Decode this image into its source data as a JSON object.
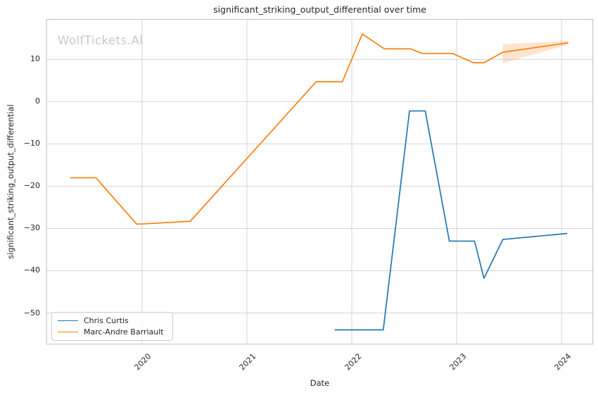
{
  "chart_data": {
    "type": "line",
    "title": "significant_striking_output_differential over time",
    "xlabel": "Date",
    "ylabel": "significant_striking_output_differential",
    "watermark": "WolfTickets.AI",
    "grid": true,
    "legend_position": "lower left",
    "xlim": [
      2019.089,
      2024.298
    ],
    "ylim": [
      -57.38,
      19.47
    ],
    "xticks": {
      "values": [
        2020,
        2021,
        2022,
        2023,
        2024
      ],
      "labels": [
        "2020",
        "2021",
        "2022",
        "2023",
        "2024"
      ]
    },
    "yticks": {
      "values": [
        10,
        0,
        -10,
        -20,
        -30,
        -40,
        -50
      ],
      "labels": [
        "10",
        "0",
        "−10",
        "−20",
        "−30",
        "−40",
        "−50"
      ]
    },
    "colors": {
      "background": "#ffffff",
      "grid": "#d5d5d5",
      "spine": "#c8c8c8",
      "text": "#262626",
      "watermark": "#c9c9c9"
    },
    "series": [
      {
        "name": "Chris Curtis",
        "color": "#1f77b4",
        "points": [
          [
            2021.84,
            -54
          ],
          [
            2022.3,
            -54
          ],
          [
            2022.55,
            -2.2
          ],
          [
            2022.7,
            -2.2
          ],
          [
            2022.93,
            -33
          ],
          [
            2023.17,
            -33
          ],
          [
            2023.26,
            -41.8
          ],
          [
            2023.44,
            -32.6
          ],
          [
            2024.05,
            -31.2
          ]
        ]
      },
      {
        "name": "Marc-Andre Barriault",
        "color": "#ff7f0e",
        "points": [
          [
            2019.32,
            -18
          ],
          [
            2019.56,
            -18
          ],
          [
            2019.95,
            -29
          ],
          [
            2020.46,
            -28.3
          ],
          [
            2021.66,
            4.7
          ],
          [
            2021.91,
            4.7
          ],
          [
            2022.1,
            16.0
          ],
          [
            2022.31,
            12.5
          ],
          [
            2022.56,
            12.5
          ],
          [
            2022.67,
            11.4
          ],
          [
            2022.96,
            11.4
          ],
          [
            2023.16,
            9.2
          ],
          [
            2023.26,
            9.2
          ],
          [
            2023.44,
            11.7
          ],
          [
            2024.06,
            13.9
          ]
        ],
        "band": {
          "x": [
            2023.44,
            2024.06
          ],
          "upper": [
            13.6,
            14.4
          ],
          "lower": [
            9.1,
            13.5
          ],
          "fill": "rgba(255,127,14,0.2)"
        }
      }
    ]
  }
}
